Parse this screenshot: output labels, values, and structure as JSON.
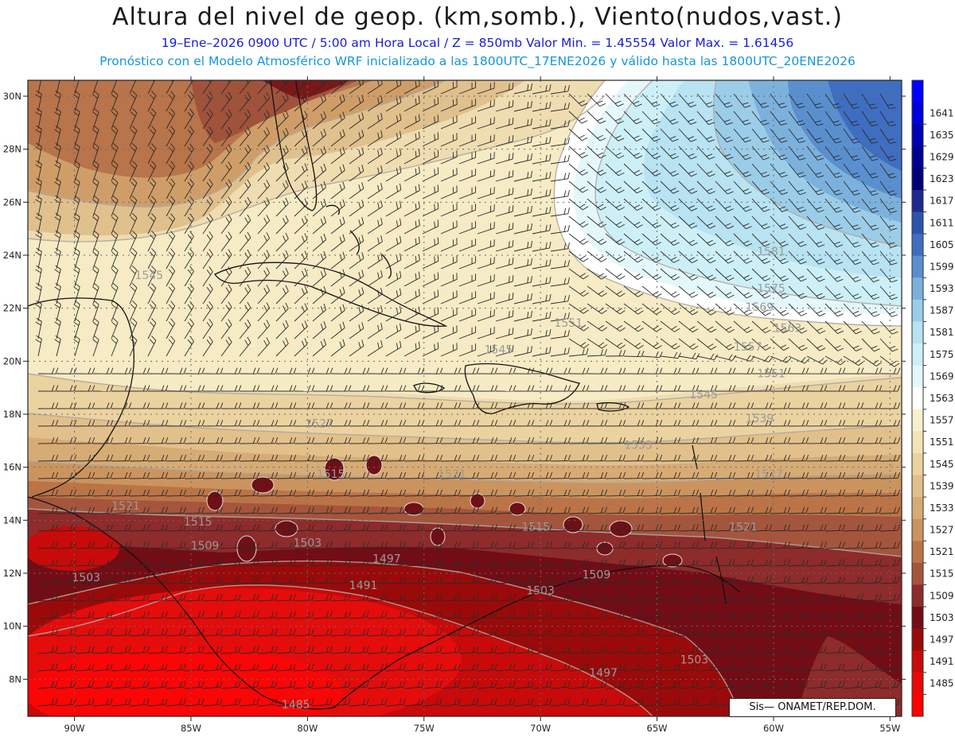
{
  "title": "Altura del nivel de geop. (km,somb.), Viento(nudos,vast.)",
  "subtitle1": "19–Ene–2026  0900 UTC / 5:00 am Hora Local / Z = 850mb    Valor Min. = 1.45554  Valor Max. = 1.61456",
  "subtitle2": "Pronóstico con el Modelo Atmosférico WRF inicializado a las 1800UTC_17ENE2026 y válido hasta las  1800UTC_20ENE2026",
  "footer": "Sis—   ONAMET/REP.DOM.",
  "map": {
    "extent": {
      "lon": [
        -92,
        -54.5
      ],
      "lat": [
        6.6,
        30.6
      ]
    },
    "lon_ticks": [
      {
        "value": -90,
        "label": "90W"
      },
      {
        "value": -85,
        "label": "85W"
      },
      {
        "value": -80,
        "label": "80W"
      },
      {
        "value": -75,
        "label": "75W"
      },
      {
        "value": -70,
        "label": "70W"
      },
      {
        "value": -65,
        "label": "65W"
      },
      {
        "value": -60,
        "label": "60W"
      },
      {
        "value": -55,
        "label": "55W"
      }
    ],
    "lat_ticks": [
      {
        "value": 30,
        "label": "30N"
      },
      {
        "value": 28,
        "label": "28N"
      },
      {
        "value": 26,
        "label": "26N"
      },
      {
        "value": 24,
        "label": "24N"
      },
      {
        "value": 22,
        "label": "22N"
      },
      {
        "value": 20,
        "label": "20N"
      },
      {
        "value": 18,
        "label": "18N"
      },
      {
        "value": 16,
        "label": "16N"
      },
      {
        "value": 14,
        "label": "14N"
      },
      {
        "value": 12,
        "label": "12N"
      },
      {
        "value": 10,
        "label": "10N"
      },
      {
        "value": 8,
        "label": "8N"
      }
    ],
    "contour_labels": [
      {
        "text": "1545",
        "lon": -86.8,
        "lat": 23.1
      },
      {
        "text": "1551",
        "lon": -68.8,
        "lat": 21.3
      },
      {
        "text": "1545",
        "lon": -71.8,
        "lat": 20.3
      },
      {
        "text": "1581",
        "lon": -60.1,
        "lat": 24.0
      },
      {
        "text": "1575",
        "lon": -60.1,
        "lat": 22.6
      },
      {
        "text": "1569",
        "lon": -60.6,
        "lat": 21.9
      },
      {
        "text": "1563",
        "lon": -59.4,
        "lat": 21.1
      },
      {
        "text": "1557",
        "lon": -61.1,
        "lat": 20.4
      },
      {
        "text": "1551",
        "lon": -60.1,
        "lat": 19.4
      },
      {
        "text": "1545",
        "lon": -63.0,
        "lat": 18.6
      },
      {
        "text": "1539",
        "lon": -60.6,
        "lat": 17.7
      },
      {
        "text": "1533",
        "lon": -65.8,
        "lat": 16.7
      },
      {
        "text": "1527",
        "lon": -79.5,
        "lat": 17.5
      },
      {
        "text": "1527",
        "lon": -60.2,
        "lat": 15.6
      },
      {
        "text": "1521",
        "lon": -87.8,
        "lat": 14.4
      },
      {
        "text": "1521",
        "lon": -73.8,
        "lat": 15.6
      },
      {
        "text": "1515",
        "lon": -79.0,
        "lat": 15.6
      },
      {
        "text": "1515",
        "lon": -84.7,
        "lat": 13.8
      },
      {
        "text": "1515",
        "lon": -70.2,
        "lat": 13.6
      },
      {
        "text": "1521",
        "lon": -61.3,
        "lat": 13.6
      },
      {
        "text": "1509",
        "lon": -84.4,
        "lat": 12.9
      },
      {
        "text": "1503",
        "lon": -80.0,
        "lat": 13.0
      },
      {
        "text": "1497",
        "lon": -76.6,
        "lat": 12.4
      },
      {
        "text": "1503",
        "lon": -89.5,
        "lat": 11.7
      },
      {
        "text": "1491",
        "lon": -77.6,
        "lat": 11.4
      },
      {
        "text": "1503",
        "lon": -70.0,
        "lat": 11.2
      },
      {
        "text": "1509",
        "lon": -67.6,
        "lat": 11.8
      },
      {
        "text": "1503",
        "lon": -63.4,
        "lat": 8.6
      },
      {
        "text": "1497",
        "lon": -67.3,
        "lat": 8.1
      },
      {
        "text": "1485",
        "lon": -80.5,
        "lat": 6.9
      }
    ]
  },
  "colorbar": {
    "levels": [
      {
        "label": "",
        "color": "#0000ff"
      },
      {
        "label": "1641",
        "color": "#0000de"
      },
      {
        "label": "1635",
        "color": "#0000b4"
      },
      {
        "label": "1629",
        "color": "#000092"
      },
      {
        "label": "1623",
        "color": "#00007a"
      },
      {
        "label": "1617",
        "color": "#1f2a8f"
      },
      {
        "label": "1611",
        "color": "#2c54ad"
      },
      {
        "label": "1605",
        "color": "#3f6ec1"
      },
      {
        "label": "1599",
        "color": "#5a8fcf"
      },
      {
        "label": "1593",
        "color": "#7cb1dd"
      },
      {
        "label": "1587",
        "color": "#9ccde8"
      },
      {
        "label": "1581",
        "color": "#b7e3f2"
      },
      {
        "label": "1575",
        "color": "#cdf0f8"
      },
      {
        "label": "1569",
        "color": "#e4f8fc"
      },
      {
        "label": "1563",
        "color": "#ffffff"
      },
      {
        "label": "1557",
        "color": "#f8f0cc"
      },
      {
        "label": "1551",
        "color": "#f3e3b6"
      },
      {
        "label": "1545",
        "color": "#ebd3a0"
      },
      {
        "label": "1539",
        "color": "#e2c08b"
      },
      {
        "label": "1533",
        "color": "#d7ab74"
      },
      {
        "label": "1527",
        "color": "#cb945f"
      },
      {
        "label": "1521",
        "color": "#bb7447"
      },
      {
        "label": "1515",
        "color": "#a5553c"
      },
      {
        "label": "1509",
        "color": "#8e2b2b"
      },
      {
        "label": "1503",
        "color": "#720d16"
      },
      {
        "label": "1497",
        "color": "#9a0a0a"
      },
      {
        "label": "1491",
        "color": "#c80a0a"
      },
      {
        "label": "1485",
        "color": "#e80808"
      },
      {
        "label": "",
        "color": "#ff0000"
      }
    ]
  }
}
